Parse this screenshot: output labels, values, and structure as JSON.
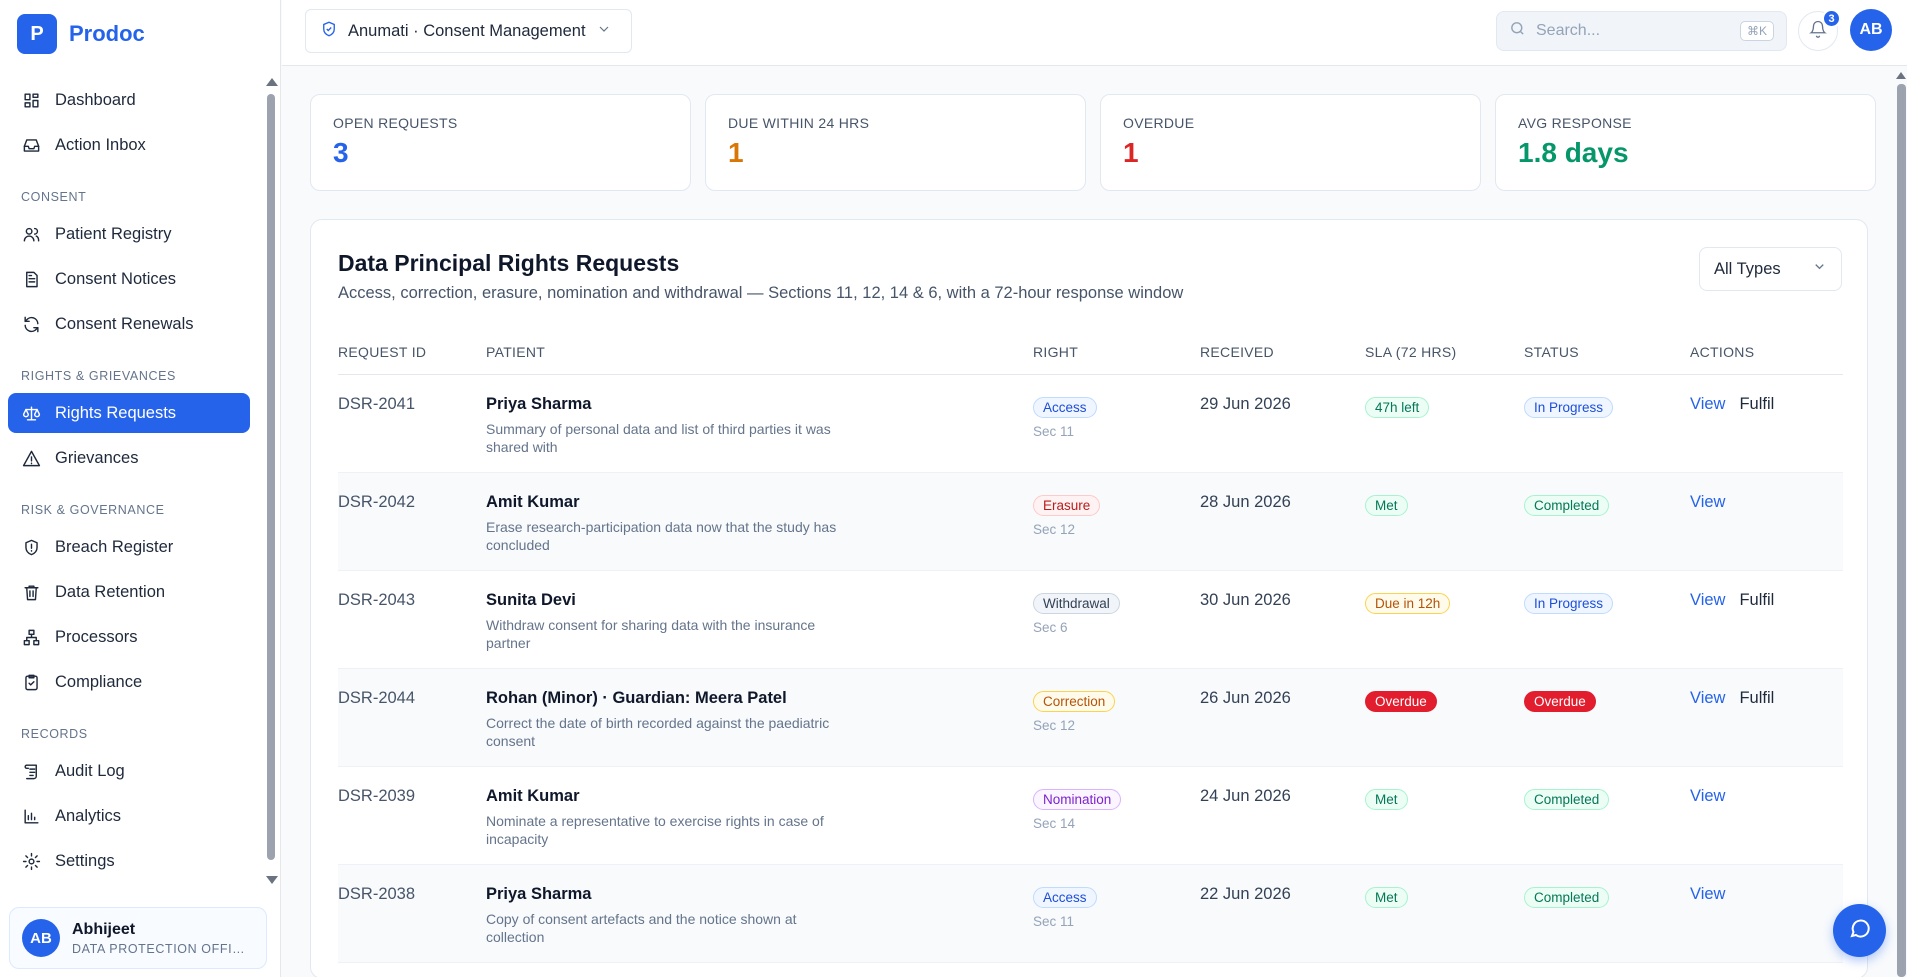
{
  "brand": {
    "logo": "P",
    "name": "Prodoc"
  },
  "sidebar": {
    "items": [
      {
        "type": "item",
        "label": "Dashboard",
        "icon": "dashboard-icon"
      },
      {
        "type": "item",
        "label": "Action Inbox",
        "icon": "inbox-icon"
      },
      {
        "type": "section",
        "label": "CONSENT"
      },
      {
        "type": "item",
        "label": "Patient Registry",
        "icon": "users-icon"
      },
      {
        "type": "item",
        "label": "Consent Notices",
        "icon": "document-icon"
      },
      {
        "type": "item",
        "label": "Consent Renewals",
        "icon": "refresh-icon"
      },
      {
        "type": "section",
        "label": "RIGHTS & GRIEVANCES"
      },
      {
        "type": "item",
        "label": "Rights Requests",
        "icon": "scale-icon",
        "active": true
      },
      {
        "type": "item",
        "label": "Grievances",
        "icon": "alert-triangle-icon"
      },
      {
        "type": "section",
        "label": "RISK & GOVERNANCE"
      },
      {
        "type": "item",
        "label": "Breach Register",
        "icon": "shield-alert-icon"
      },
      {
        "type": "item",
        "label": "Data Retention",
        "icon": "trash-icon"
      },
      {
        "type": "item",
        "label": "Processors",
        "icon": "network-icon"
      },
      {
        "type": "item",
        "label": "Compliance",
        "icon": "clipboard-check-icon"
      },
      {
        "type": "section",
        "label": "RECORDS"
      },
      {
        "type": "item",
        "label": "Audit Log",
        "icon": "scroll-icon"
      },
      {
        "type": "item",
        "label": "Analytics",
        "icon": "bar-chart-icon"
      },
      {
        "type": "item",
        "label": "Settings",
        "icon": "gear-icon"
      }
    ],
    "user": {
      "initials": "AB",
      "name": "Abhijeet",
      "role": "DATA PROTECTION OFFICER"
    }
  },
  "header": {
    "workspace": "Anumati · Consent Management",
    "search_placeholder": "Search...",
    "search_shortcut": "⌘K",
    "notification_count": "3",
    "avatar_initials": "AB"
  },
  "stats": [
    {
      "label": "OPEN REQUESTS",
      "value": "3",
      "color": "#2563eb"
    },
    {
      "label": "DUE WITHIN 24 HRS",
      "value": "1",
      "color": "#d97706"
    },
    {
      "label": "OVERDUE",
      "value": "1",
      "color": "#dc2626"
    },
    {
      "label": "AVG RESPONSE",
      "value": "1.8 days",
      "color": "#059669"
    }
  ],
  "panel": {
    "title": "Data Principal Rights Requests",
    "subtitle": "Access, correction, erasure, nomination and withdrawal — Sections 11, 12, 14 & 6, with a 72-hour response window",
    "filter": "All Types",
    "columns": [
      "REQUEST ID",
      "PATIENT",
      "RIGHT",
      "RECEIVED",
      "SLA (72 HRS)",
      "STATUS",
      "ACTIONS"
    ],
    "rows": [
      {
        "id": "DSR-2041",
        "patient": "Priya Sharma",
        "desc": "Summary of personal data and list of third parties it was shared with",
        "right": "Access",
        "right_style": "blue",
        "section": "Sec 11",
        "received": "29 Jun 2026",
        "sla": "47h left",
        "sla_style": "green",
        "status": "In Progress",
        "status_style": "blue",
        "actions": [
          "View",
          "Fulfil"
        ]
      },
      {
        "id": "DSR-2042",
        "patient": "Amit Kumar",
        "desc": "Erase research-participation data now that the study has concluded",
        "right": "Erasure",
        "right_style": "red",
        "section": "Sec 12",
        "received": "28 Jun 2026",
        "sla": "Met",
        "sla_style": "green",
        "status": "Completed",
        "status_style": "green",
        "actions": [
          "View"
        ]
      },
      {
        "id": "DSR-2043",
        "patient": "Sunita Devi",
        "desc": "Withdraw consent for sharing data with the insurance partner",
        "right": "Withdrawal",
        "right_style": "gray",
        "section": "Sec 6",
        "received": "30 Jun 2026",
        "sla": "Due in 12h",
        "sla_style": "amber",
        "status": "In Progress",
        "status_style": "blue",
        "actions": [
          "View",
          "Fulfil"
        ]
      },
      {
        "id": "DSR-2044",
        "patient": "Rohan (Minor) · Guardian: Meera Patel",
        "desc": "Correct the date of birth recorded against the paediatric consent",
        "right": "Correction",
        "right_style": "amber",
        "section": "Sec 12",
        "received": "26 Jun 2026",
        "sla": "Overdue",
        "sla_style": "solid-red",
        "status": "Overdue",
        "status_style": "solid-red",
        "actions": [
          "View",
          "Fulfil"
        ]
      },
      {
        "id": "DSR-2039",
        "patient": "Amit Kumar",
        "desc": "Nominate a representative to exercise rights in case of incapacity",
        "right": "Nomination",
        "right_style": "purple",
        "section": "Sec 14",
        "received": "24 Jun 2026",
        "sla": "Met",
        "sla_style": "green",
        "status": "Completed",
        "status_style": "green",
        "actions": [
          "View"
        ]
      },
      {
        "id": "DSR-2038",
        "patient": "Priya Sharma",
        "desc": "Copy of consent artefacts and the notice shown at collection",
        "right": "Access",
        "right_style": "blue",
        "section": "Sec 11",
        "received": "22 Jun 2026",
        "sla": "Met",
        "sla_style": "green",
        "status": "Completed",
        "status_style": "green",
        "actions": [
          "View"
        ]
      }
    ]
  },
  "badge_styles": {
    "blue": {
      "bg": "#eff6ff",
      "border": "#bfdbfe",
      "color": "#1d4ed8"
    },
    "red": {
      "bg": "#fef2f2",
      "border": "#fecaca",
      "color": "#b91c1c"
    },
    "gray": {
      "bg": "#f1f5f9",
      "border": "#cbd5e1",
      "color": "#334155"
    },
    "amber": {
      "bg": "#fffbeb",
      "border": "#fcd34d",
      "color": "#b45309"
    },
    "purple": {
      "bg": "#faf5ff",
      "border": "#d8b4fe",
      "color": "#7e22ce"
    },
    "green": {
      "bg": "#ecfdf5",
      "border": "#a7f3d0",
      "color": "#047857"
    },
    "solid-red": {
      "bg": "#e11d2e",
      "border": "#e11d2e",
      "color": "#ffffff"
    }
  }
}
